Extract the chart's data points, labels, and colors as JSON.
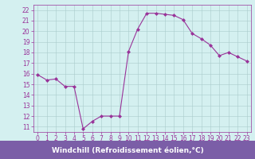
{
  "x": [
    0,
    1,
    2,
    3,
    4,
    5,
    6,
    7,
    8,
    9,
    10,
    11,
    12,
    13,
    14,
    15,
    16,
    17,
    18,
    19,
    20,
    21,
    22,
    23
  ],
  "y": [
    15.9,
    15.4,
    15.5,
    14.8,
    14.8,
    10.8,
    11.5,
    12.0,
    12.0,
    12.0,
    18.1,
    20.2,
    21.7,
    21.7,
    21.6,
    21.5,
    21.1,
    19.8,
    19.3,
    18.7,
    17.7,
    18.0,
    17.6,
    17.2
  ],
  "line_color": "#993399",
  "marker": "D",
  "marker_size": 2,
  "bg_color": "#d4f0f0",
  "grid_color": "#aacccc",
  "xlabel": "Windchill (Refroidissement éolien,°C)",
  "xlabel_bg": "#7b5ea7",
  "xlabel_fg": "#ffffff",
  "tick_color": "#993399",
  "xlim": [
    -0.5,
    23.5
  ],
  "ylim": [
    10.5,
    22.5
  ],
  "yticks": [
    11,
    12,
    13,
    14,
    15,
    16,
    17,
    18,
    19,
    20,
    21,
    22
  ],
  "xticks": [
    0,
    1,
    2,
    3,
    4,
    5,
    6,
    7,
    8,
    9,
    10,
    11,
    12,
    13,
    14,
    15,
    16,
    17,
    18,
    19,
    20,
    21,
    22,
    23
  ],
  "tick_fontsize": 5.5,
  "xlabel_fontsize": 6.5
}
